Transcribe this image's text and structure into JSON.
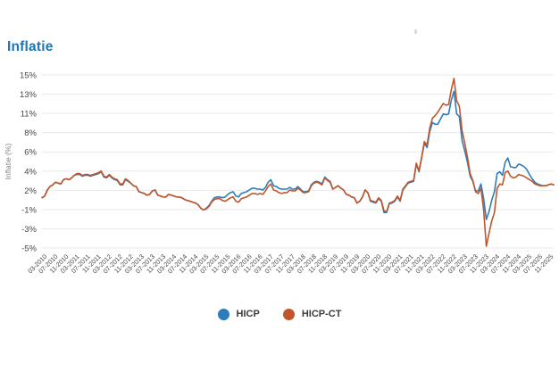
{
  "page": {
    "title": "Inflatie"
  },
  "legend": {
    "items": [
      "HICP",
      "HICP-CT"
    ]
  },
  "chart_data": {
    "type": "line",
    "title": "Inflatie",
    "xlabel": "",
    "ylabel": "Inflatie (%)",
    "ylim": [
      -5,
      15
    ],
    "grid": "horizontal-only",
    "legend_position": "bottom-center",
    "x_frequency": "monthly",
    "x_range": [
      "01-2010",
      "11-2025"
    ],
    "y_tick_labels": [
      "15%",
      "13%",
      "11%",
      "8%",
      "6%",
      "4%",
      "2%",
      "-1%",
      "-3%",
      "-5%"
    ],
    "x_tick_labels": [
      "03-2010",
      "07-2010",
      "11-2010",
      "03-2011",
      "07-2011",
      "11-2011",
      "03-2012",
      "07-2012",
      "11-2012",
      "03-2013",
      "07-2013",
      "11-2013",
      "03-2014",
      "07-2014",
      "11-2014",
      "03-2015",
      "07-2015",
      "11-2015",
      "03-2016",
      "07-2016",
      "11-2016",
      "03-2017",
      "07-2017",
      "11-2017",
      "03-2018",
      "07-2018",
      "11-2018",
      "03-2019",
      "07-2019",
      "11-2019",
      "03-2020",
      "07-2020",
      "11-2020",
      "03-2021",
      "07-2021",
      "11-2021",
      "03-2022",
      "07-2022",
      "11-2022",
      "03-2023",
      "07-2023",
      "11-2023",
      "03-2024",
      "07-2024",
      "11-2024",
      "03-2025",
      "07-2025",
      "11-2025"
    ],
    "x_tick_month_offset": 2,
    "x_tick_month_step": 4,
    "colors": {
      "hicp": "#2d7dbb",
      "hicp_ct": "#c1562b",
      "grid": "#e9e9e9",
      "tick_text": "#474747",
      "axis_title_text": "#828282"
    },
    "series": [
      {
        "name": "HICP",
        "color": "#2d7dbb",
        "values": [
          0.8,
          1.0,
          1.7,
          2.1,
          2.3,
          2.6,
          2.5,
          2.4,
          2.9,
          3.0,
          2.9,
          3.1,
          3.4,
          3.5,
          3.5,
          3.3,
          3.4,
          3.4,
          3.3,
          3.4,
          3.5,
          3.6,
          3.8,
          3.2,
          3.1,
          3.4,
          3.1,
          2.9,
          2.8,
          2.3,
          2.3,
          2.9,
          2.7,
          2.5,
          2.2,
          2.1,
          1.5,
          1.4,
          1.3,
          1.1,
          1.2,
          1.6,
          1.7,
          1.1,
          1.0,
          0.9,
          0.9,
          1.2,
          1.1,
          1.0,
          0.9,
          0.9,
          0.8,
          0.6,
          0.5,
          0.4,
          0.3,
          0.2,
          0.0,
          -0.4,
          -0.6,
          -0.4,
          -0.1,
          0.4,
          0.8,
          0.9,
          0.9,
          0.8,
          0.9,
          1.2,
          1.4,
          1.5,
          1.0,
          0.9,
          1.3,
          1.4,
          1.5,
          1.7,
          1.9,
          1.9,
          1.8,
          1.8,
          1.7,
          2.0,
          2.6,
          2.9,
          2.2,
          2.1,
          1.9,
          1.8,
          1.8,
          1.8,
          2.0,
          1.8,
          1.8,
          2.1,
          1.8,
          1.5,
          1.5,
          1.6,
          2.3,
          2.6,
          2.7,
          2.6,
          2.4,
          3.2,
          2.9,
          2.7,
          1.8,
          2.0,
          2.2,
          1.9,
          1.7,
          1.2,
          1.1,
          0.9,
          0.8,
          0.2,
          0.4,
          0.9,
          1.7,
          1.4,
          0.4,
          0.3,
          0.2,
          0.7,
          0.4,
          -0.9,
          -0.9,
          0.1,
          0.2,
          0.4,
          0.9,
          0.4,
          1.7,
          2.1,
          2.5,
          2.6,
          2.7,
          4.7,
          3.8,
          5.4,
          7.1,
          6.6,
          8.5,
          9.5,
          9.3,
          9.3,
          9.9,
          10.5,
          10.4,
          10.5,
          12.1,
          13.1,
          10.5,
          10.2,
          7.4,
          6.2,
          4.9,
          3.3,
          2.7,
          1.6,
          1.6,
          2.4,
          0.7,
          -1.7,
          -0.8,
          0.5,
          1.5,
          3.6,
          3.8,
          3.4,
          4.9,
          5.4,
          4.4,
          4.3,
          4.3,
          4.7,
          4.6,
          4.4,
          4.1,
          3.5,
          3.0,
          2.6,
          2.4,
          2.3,
          2.2,
          2.2,
          2.3,
          2.4,
          2.3
        ]
      },
      {
        "name": "HICP-CT",
        "color": "#c1562b",
        "values": [
          0.8,
          1.0,
          1.7,
          2.1,
          2.3,
          2.6,
          2.5,
          2.4,
          2.9,
          3.0,
          2.9,
          3.1,
          3.4,
          3.6,
          3.6,
          3.4,
          3.5,
          3.5,
          3.4,
          3.5,
          3.6,
          3.7,
          3.9,
          3.3,
          3.2,
          3.5,
          3.2,
          3.0,
          2.9,
          2.4,
          2.4,
          3.0,
          2.8,
          2.5,
          2.2,
          2.1,
          1.5,
          1.4,
          1.3,
          1.1,
          1.2,
          1.6,
          1.7,
          1.1,
          1.0,
          0.9,
          0.9,
          1.2,
          1.1,
          1.0,
          0.9,
          0.9,
          0.8,
          0.6,
          0.5,
          0.4,
          0.3,
          0.2,
          0.0,
          -0.4,
          -0.6,
          -0.5,
          -0.2,
          0.3,
          0.6,
          0.7,
          0.7,
          0.5,
          0.4,
          0.6,
          0.8,
          0.9,
          0.4,
          0.3,
          0.7,
          0.8,
          0.9,
          1.1,
          1.3,
          1.3,
          1.2,
          1.3,
          1.2,
          1.6,
          2.1,
          2.4,
          1.7,
          1.6,
          1.4,
          1.3,
          1.4,
          1.4,
          1.7,
          1.6,
          1.6,
          1.9,
          1.7,
          1.4,
          1.4,
          1.5,
          2.2,
          2.5,
          2.6,
          2.5,
          2.3,
          3.1,
          2.8,
          2.6,
          1.8,
          2.0,
          2.2,
          1.9,
          1.7,
          1.2,
          1.1,
          0.9,
          0.8,
          0.2,
          0.4,
          0.9,
          1.7,
          1.4,
          0.5,
          0.4,
          0.3,
          0.8,
          0.5,
          -0.7,
          -0.8,
          0.2,
          0.3,
          0.5,
          1.0,
          0.5,
          1.8,
          2.2,
          2.6,
          2.7,
          2.8,
          4.8,
          3.9,
          5.5,
          7.3,
          6.9,
          8.9,
          10.0,
          10.3,
          10.7,
          11.2,
          11.7,
          11.5,
          11.6,
          13.3,
          14.6,
          12.0,
          11.4,
          8.5,
          7.1,
          5.5,
          3.6,
          2.8,
          1.5,
          1.3,
          1.9,
          -0.6,
          -4.8,
          -3.3,
          -1.9,
          -0.9,
          1.9,
          2.4,
          2.3,
          3.7,
          3.9,
          3.3,
          3.1,
          3.2,
          3.5,
          3.4,
          3.3,
          3.1,
          2.9,
          2.7,
          2.4,
          2.3,
          2.2,
          2.2,
          2.2,
          2.3,
          2.4,
          2.3
        ]
      }
    ]
  }
}
